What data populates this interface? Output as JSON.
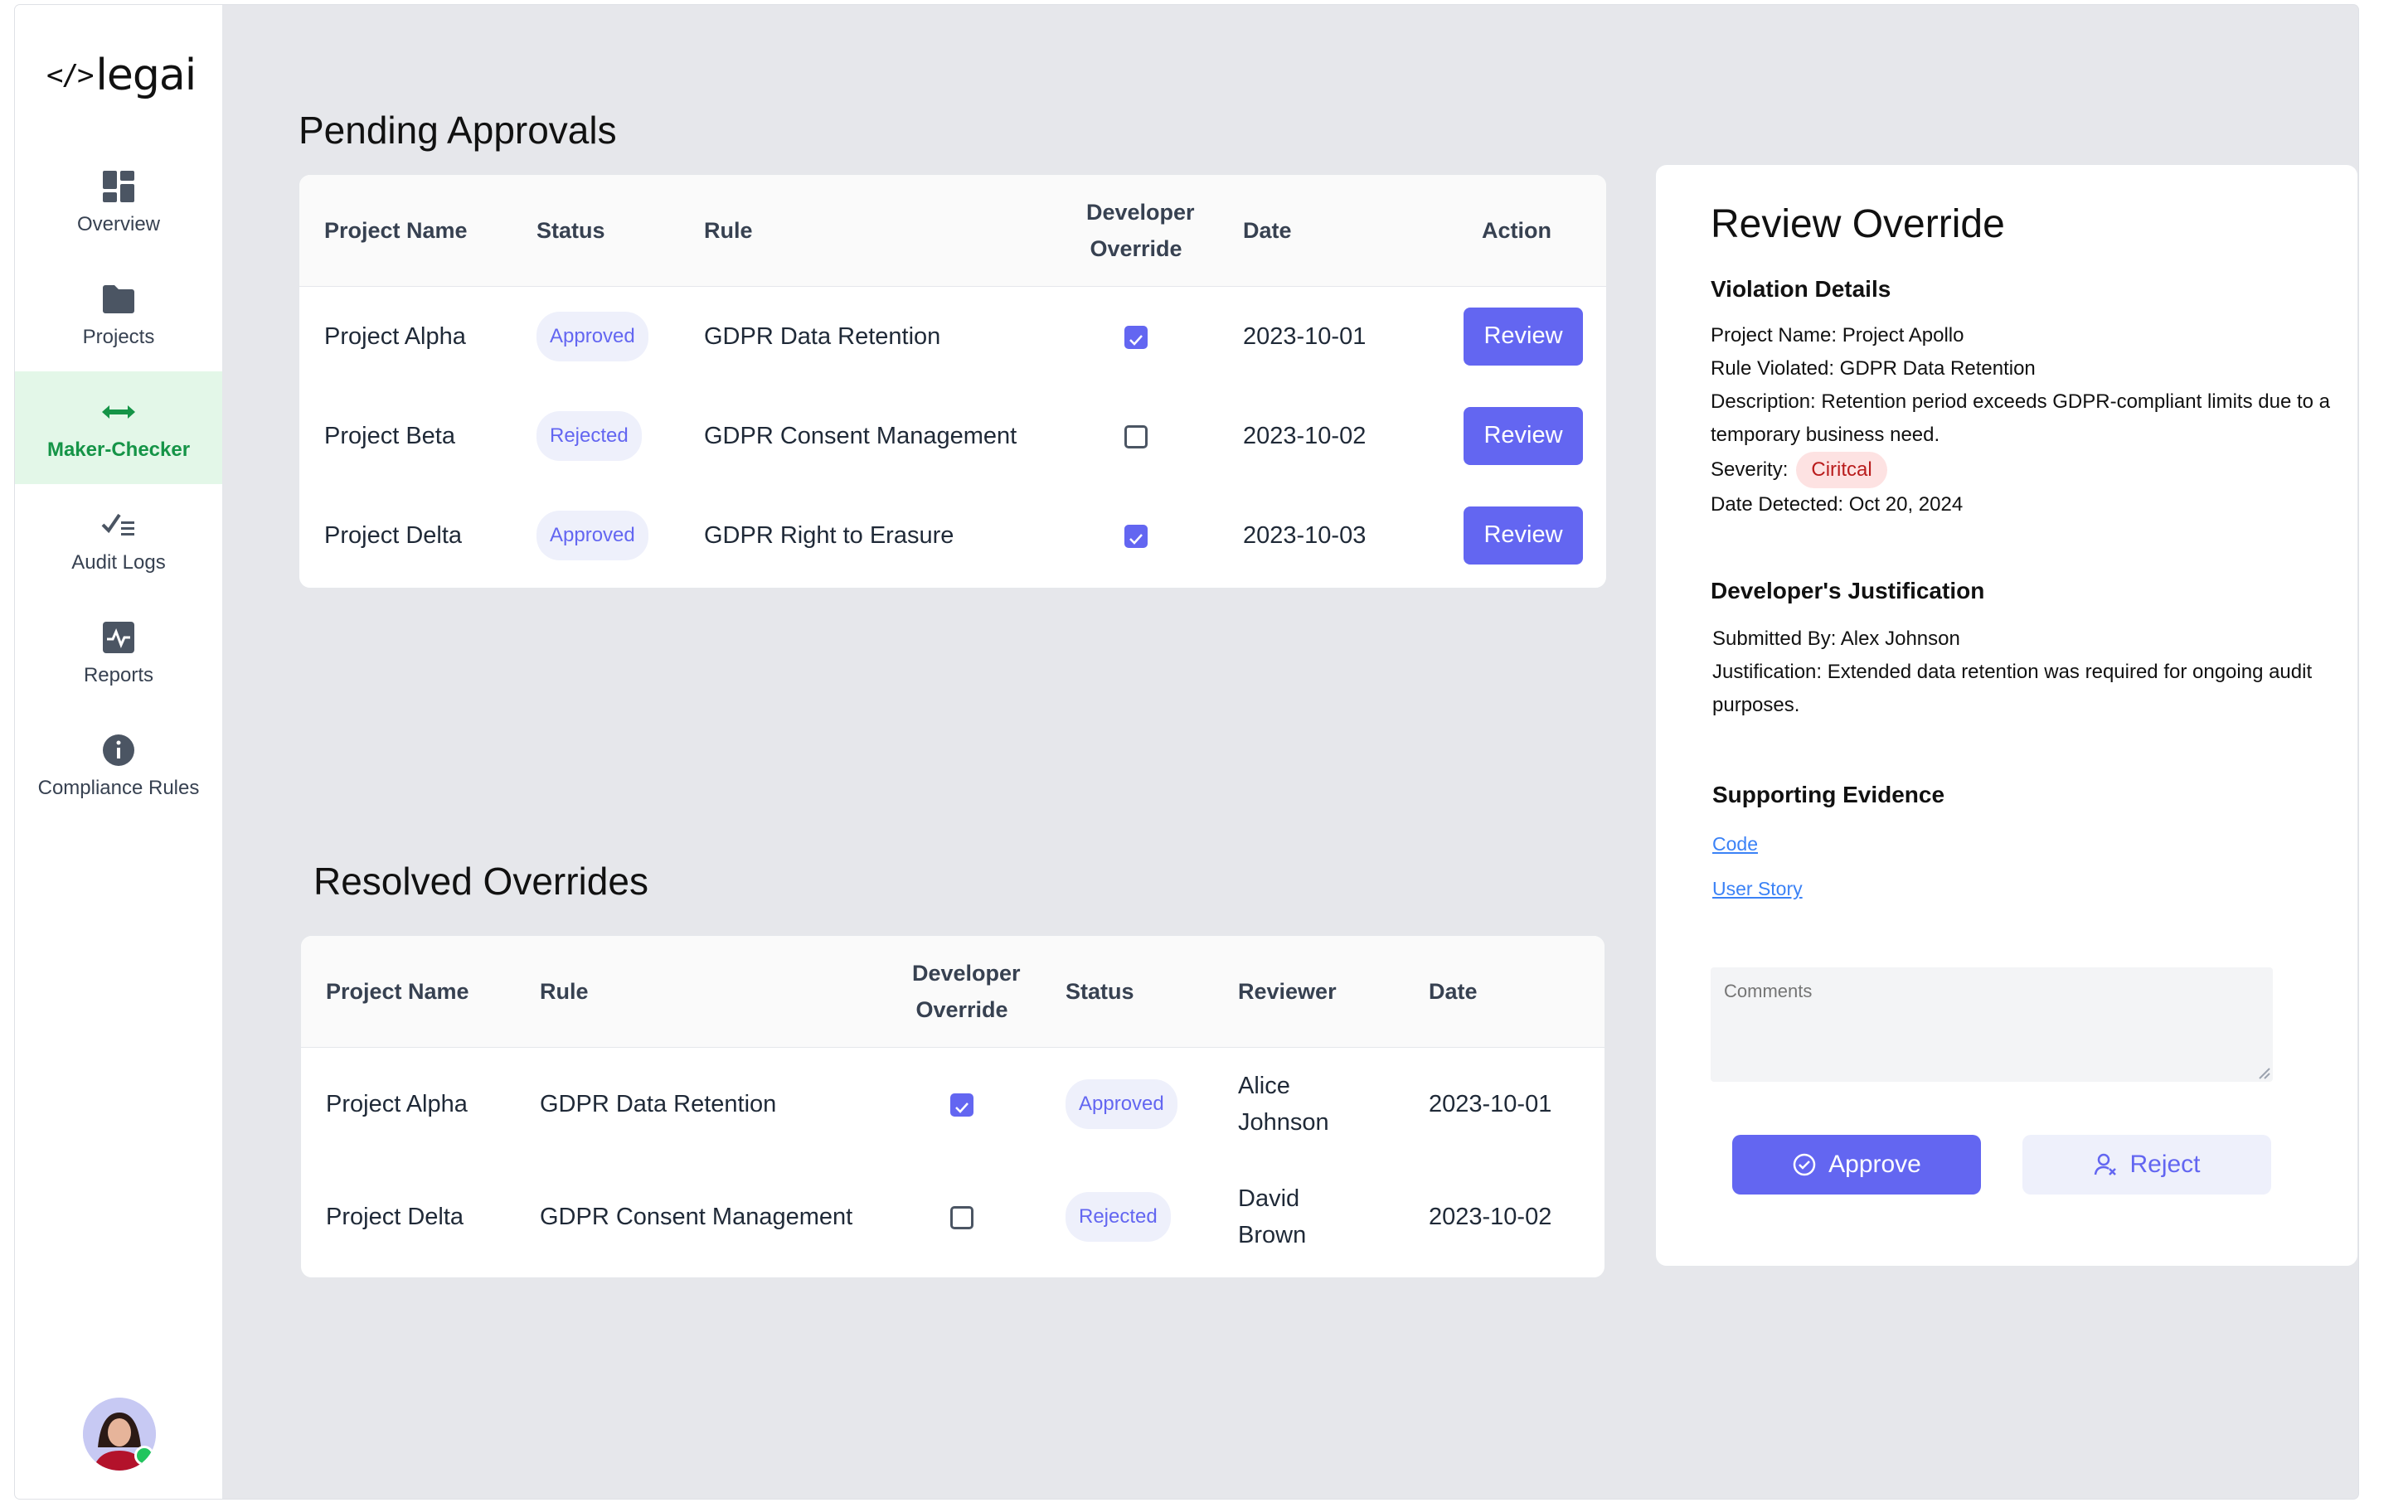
{
  "app": {
    "logo_glyph": "</>",
    "logo_text": "legai"
  },
  "sidebar": {
    "items": [
      {
        "label": "Overview",
        "icon": "dashboard-icon"
      },
      {
        "label": "Projects",
        "icon": "folder-icon"
      },
      {
        "label": "Maker-Checker",
        "icon": "swap-arrows-icon",
        "active": true
      },
      {
        "label": "Audit Logs",
        "icon": "checklist-icon"
      },
      {
        "label": "Reports",
        "icon": "activity-chart-icon"
      },
      {
        "label": "Compliance Rules",
        "icon": "info-icon"
      }
    ]
  },
  "pending": {
    "title": "Pending Approvals",
    "headers": {
      "project": "Project Name",
      "status": "Status",
      "rule": "Rule",
      "override": "Developer Override",
      "date": "Date",
      "action": "Action"
    },
    "rows": [
      {
        "project": "Project Alpha",
        "status": "Approved",
        "rule": "GDPR Data Retention",
        "override": true,
        "date": "2023-10-01",
        "action": "Review"
      },
      {
        "project": "Project Beta",
        "status": "Rejected",
        "rule": "GDPR Consent Management",
        "override": false,
        "date": "2023-10-02",
        "action": "Review"
      },
      {
        "project": "Project Delta",
        "status": "Approved",
        "rule": "GDPR Right to Erasure",
        "override": true,
        "date": "2023-10-03",
        "action": "Review"
      }
    ]
  },
  "resolved": {
    "title": "Resolved Overrides",
    "headers": {
      "project": "Project Name",
      "rule": "Rule",
      "override": "Developer Override",
      "status": "Status",
      "reviewer": "Reviewer",
      "date": "Date"
    },
    "rows": [
      {
        "project": "Project Alpha",
        "rule": "GDPR Data Retention",
        "override": true,
        "status": "Approved",
        "reviewer": "Alice Johnson",
        "date": "2023-10-01"
      },
      {
        "project": "Project Delta",
        "rule": "GDPR Consent Management",
        "override": false,
        "status": "Rejected",
        "reviewer": "David Brown",
        "date": "2023-10-02"
      }
    ]
  },
  "review": {
    "title": "Review Override",
    "violation_heading": "Violation Details",
    "project_line": "Project Name: Project Apollo",
    "rule_line": "Rule Violated: GDPR Data Retention",
    "description_line": "Description: Retention period exceeds GDPR-compliant limits due to a temporary business need.",
    "severity_label": "Severity:",
    "severity_value": "Ciritcal",
    "date_line": "Date Detected: Oct 20, 2024",
    "justification_heading": "Developer's Justification",
    "submitted_line": "Submitted By: Alex Johnson",
    "justification_line": "Justification: Extended data retention was required for ongoing audit purposes.",
    "evidence_heading": "Supporting Evidence",
    "evidence_links": [
      "Code",
      "User Story"
    ],
    "comments_placeholder": "Comments",
    "approve_label": "Approve",
    "reject_label": "Reject"
  },
  "colors": {
    "accent": "#6366f1",
    "active_nav_bg": "#e3f7e8",
    "active_nav_text": "#159447",
    "critical_bg": "#fde2e2"
  }
}
